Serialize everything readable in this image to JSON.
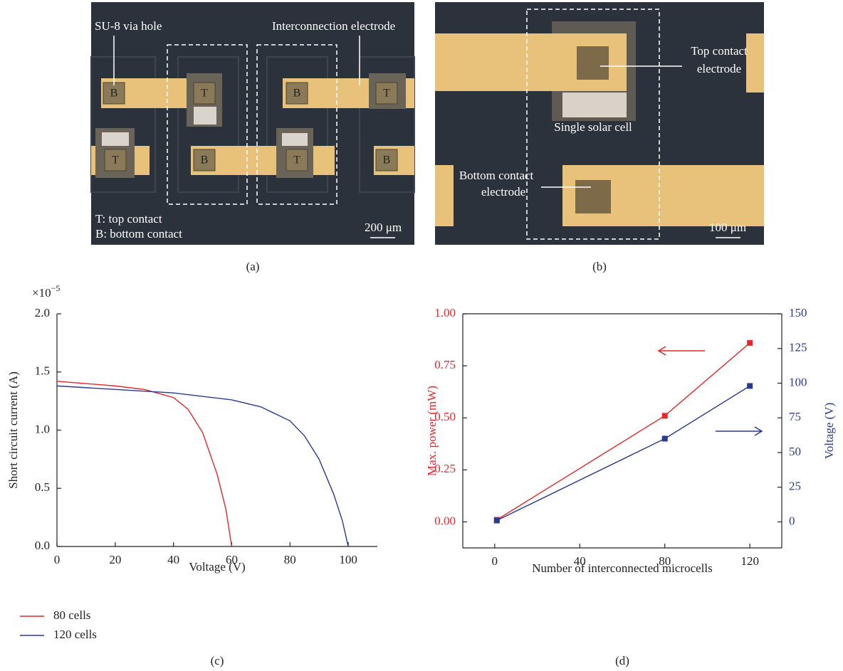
{
  "images": [
    {
      "caption": "(a)",
      "annotations": [
        "SU-8 via hole",
        "Interconnection electrode",
        "T: top contact",
        "B: bottom contact"
      ],
      "pad_labels": [
        "B",
        "T",
        "B",
        "T",
        "T",
        "B",
        "T",
        "B"
      ],
      "scale_bar": "200 μm"
    },
    {
      "caption": "(b)",
      "annotations": [
        "Top contact",
        "electrode",
        "Single solar cell",
        "Bottom contact",
        "electrode"
      ],
      "scale_bar": "100 μm"
    }
  ],
  "chart_data": [
    {
      "type": "line",
      "caption": "(c)",
      "xlabel": "Voltage (V)",
      "ylabel": "Short circuit current (A)",
      "y_multiplier": {
        "base": "×10",
        "exponent": "−5"
      },
      "xlim": [
        0,
        110
      ],
      "xticks": [
        0,
        20,
        40,
        60,
        80,
        100
      ],
      "ylim": [
        0,
        2.0
      ],
      "yticks": [
        {
          "value": 0,
          "label": "0.0"
        },
        {
          "value": 0.5,
          "label": "0.5"
        },
        {
          "value": 1.0,
          "label": "1.0"
        },
        {
          "value": 1.5,
          "label": "1.5"
        },
        {
          "value": 2.0,
          "label": "2.0"
        }
      ],
      "legend": "below",
      "series": [
        {
          "name": "80 cells",
          "color": "#e8262b",
          "x": [
            0,
            10,
            20,
            30,
            40,
            45,
            50,
            55,
            58,
            60
          ],
          "values": [
            1.42,
            1.4,
            1.38,
            1.35,
            1.28,
            1.18,
            0.98,
            0.62,
            0.32,
            0
          ]
        },
        {
          "name": "120 cells",
          "color": "#2b3990",
          "x": [
            0,
            20,
            40,
            60,
            70,
            80,
            85,
            90,
            95,
            98,
            100
          ],
          "values": [
            1.38,
            1.35,
            1.32,
            1.26,
            1.2,
            1.08,
            0.95,
            0.75,
            0.45,
            0.22,
            0
          ]
        }
      ]
    },
    {
      "type": "line",
      "caption": "(d)",
      "xlabel": "Number of interconnected microcells",
      "ylabel": "Max. power (mW)",
      "y2label": "Voltage (V)",
      "markers": true,
      "xlim": [
        -15,
        135
      ],
      "xticks": [
        0,
        40,
        80,
        120
      ],
      "ylim": [
        -0.125,
        1.0
      ],
      "yticks": [
        {
          "value": 0,
          "label": "0.00"
        },
        {
          "value": 0.25,
          "label": "0.25"
        },
        {
          "value": 0.5,
          "label": "0.50"
        },
        {
          "value": 0.75,
          "label": "0.75"
        },
        {
          "value": 1.0,
          "label": "1.00"
        }
      ],
      "y2lim": [
        -18.75,
        150
      ],
      "y2ticks": [
        0,
        25,
        50,
        75,
        100,
        125,
        150
      ],
      "x": [
        1,
        80,
        120
      ],
      "series": [
        {
          "color": "#e8262b",
          "values": [
            0.01,
            0.51,
            0.86
          ]
        },
        {
          "color": "#2b3990",
          "axis": "y2",
          "values": [
            1,
            60,
            98
          ]
        }
      ]
    }
  ]
}
